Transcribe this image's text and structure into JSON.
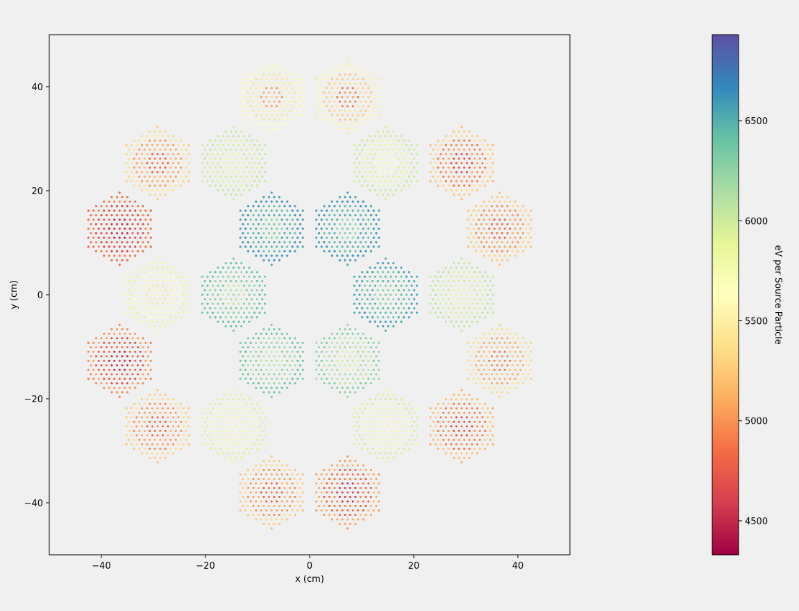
{
  "chart_data": {
    "type": "scatter",
    "title": "",
    "xlabel": "x (cm)",
    "ylabel": "y (cm)",
    "xlim": [
      -50,
      50
    ],
    "ylim": [
      -50,
      50
    ],
    "xticks": [
      -40,
      -20,
      0,
      20,
      40
    ],
    "yticks": [
      -40,
      -20,
      0,
      20,
      40
    ],
    "xtick_labels": [
      "−40",
      "−20",
      "0",
      "20",
      "40"
    ],
    "ytick_labels": [
      "−40",
      "−20",
      "0",
      "20",
      "40"
    ],
    "grid": false,
    "colormap": "Spectral",
    "colorbar": {
      "label": "eV per Source Particle",
      "range": [
        4330,
        6930
      ],
      "ticks": [
        4500,
        5000,
        5500,
        6000,
        6500
      ],
      "tick_labels": [
        "4500",
        "5000",
        "5500",
        "6000",
        "6500"
      ]
    },
    "assemblies": [
      {
        "center": [
          -7.3,
          38.0
        ],
        "values": [
          4950,
          5350,
          5550,
          5700
        ]
      },
      {
        "center": [
          7.3,
          38.0
        ],
        "values": [
          4800,
          5200,
          5400,
          5600
        ]
      },
      {
        "center": [
          -29.2,
          25.3
        ],
        "values": [
          4700,
          5000,
          5200,
          5450
        ]
      },
      {
        "center": [
          -14.6,
          25.3
        ],
        "values": [
          5800,
          5900,
          6000,
          6050
        ]
      },
      {
        "center": [
          14.6,
          25.3
        ],
        "values": [
          5600,
          5800,
          5950,
          6050
        ]
      },
      {
        "center": [
          29.2,
          25.3
        ],
        "values": [
          4600,
          4850,
          5100,
          5400
        ]
      },
      {
        "center": [
          -36.5,
          12.7
        ],
        "values": [
          4450,
          4600,
          4750,
          4950
        ]
      },
      {
        "center": [
          -7.3,
          12.7
        ],
        "values": [
          6250,
          6400,
          6550,
          6650
        ]
      },
      {
        "center": [
          7.3,
          12.7
        ],
        "values": [
          6200,
          6400,
          6550,
          6650
        ]
      },
      {
        "center": [
          36.5,
          12.7
        ],
        "values": [
          4750,
          4950,
          5150,
          5350
        ]
      },
      {
        "center": [
          -29.2,
          0.0
        ],
        "values": [
          5350,
          5600,
          5750,
          5900
        ]
      },
      {
        "center": [
          -14.6,
          0.0
        ],
        "values": [
          6000,
          6200,
          6350,
          6450
        ]
      },
      {
        "center": [
          14.6,
          0.0
        ],
        "values": [
          6200,
          6350,
          6500,
          6600
        ]
      },
      {
        "center": [
          29.2,
          0.0
        ],
        "values": [
          5800,
          5900,
          6000,
          6100
        ]
      },
      {
        "center": [
          -36.5,
          -12.7
        ],
        "values": [
          4450,
          4650,
          4850,
          5100
        ]
      },
      {
        "center": [
          -7.3,
          -12.7
        ],
        "values": [
          6000,
          6150,
          6300,
          6450
        ]
      },
      {
        "center": [
          7.3,
          -12.7
        ],
        "values": [
          5900,
          6050,
          6200,
          6350
        ]
      },
      {
        "center": [
          36.5,
          -12.7
        ],
        "values": [
          4850,
          5050,
          5250,
          5450
        ]
      },
      {
        "center": [
          -29.2,
          -25.3
        ],
        "values": [
          4750,
          4950,
          5150,
          5400
        ]
      },
      {
        "center": [
          -14.6,
          -25.3
        ],
        "values": [
          5500,
          5700,
          5850,
          5950
        ]
      },
      {
        "center": [
          14.6,
          -25.3
        ],
        "values": [
          5500,
          5700,
          5850,
          6000
        ]
      },
      {
        "center": [
          29.2,
          -25.3
        ],
        "values": [
          4600,
          4850,
          5050,
          5300
        ]
      },
      {
        "center": [
          -7.3,
          -38.0
        ],
        "values": [
          4700,
          4950,
          5150,
          5350
        ]
      },
      {
        "center": [
          7.3,
          -38.0
        ],
        "values": [
          4500,
          4750,
          4950,
          5150
        ]
      }
    ]
  }
}
